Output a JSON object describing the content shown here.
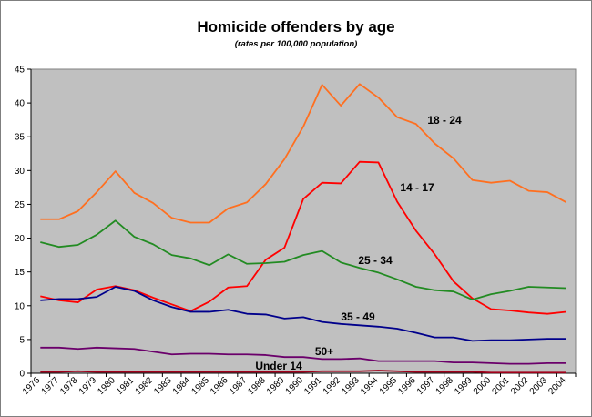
{
  "chart_data": {
    "type": "line",
    "title": "Homicide offenders by age",
    "subtitle": "(rates per 100,000 population)",
    "xlabel": "",
    "ylabel": "",
    "ylim": [
      0,
      45
    ],
    "yticks": [
      0,
      5,
      10,
      15,
      20,
      25,
      30,
      35,
      40,
      45
    ],
    "grid": false,
    "legend": "inline labels",
    "plot_background": "#c0c0c0",
    "categories": [
      "1976",
      "1977",
      "1978",
      "1979",
      "1980",
      "1981",
      "1982",
      "1983",
      "1984",
      "1985",
      "1986",
      "1987",
      "1988",
      "1989",
      "1990",
      "1991",
      "1992",
      "1993",
      "1994",
      "1995",
      "1996",
      "1997",
      "1998",
      "1999",
      "2000",
      "2001",
      "2002",
      "2003",
      "2004"
    ],
    "series": [
      {
        "name": "18 - 24",
        "color": "#ff6f1f",
        "values": [
          22.8,
          22.8,
          24.0,
          26.8,
          29.9,
          26.7,
          25.2,
          23.0,
          22.3,
          22.3,
          24.4,
          25.3,
          28.0,
          31.7,
          36.5,
          42.7,
          39.6,
          42.8,
          40.8,
          37.9,
          36.9,
          34.0,
          31.8,
          28.6,
          28.2,
          28.5,
          27.0,
          26.8,
          25.3
        ]
      },
      {
        "name": "14 - 17",
        "color": "#ff0000",
        "values": [
          11.4,
          10.8,
          10.5,
          12.4,
          12.9,
          12.3,
          11.2,
          10.2,
          9.2,
          10.6,
          12.7,
          12.9,
          16.8,
          18.6,
          25.8,
          28.2,
          28.1,
          31.3,
          31.2,
          25.4,
          21.1,
          17.6,
          13.6,
          11.1,
          9.5,
          9.3,
          9.0,
          8.8,
          9.1
        ]
      },
      {
        "name": "25 - 34",
        "color": "#228b22",
        "values": [
          19.4,
          18.7,
          19.0,
          20.5,
          22.6,
          20.2,
          19.1,
          17.5,
          17.0,
          16.0,
          17.6,
          16.2,
          16.3,
          16.5,
          17.5,
          18.1,
          16.4,
          15.6,
          14.9,
          13.9,
          12.8,
          12.3,
          12.1,
          10.9,
          11.7,
          12.2,
          12.8,
          12.7,
          12.6
        ]
      },
      {
        "name": "35 - 49",
        "color": "#00008b",
        "values": [
          10.8,
          11.0,
          11.0,
          11.3,
          12.8,
          12.2,
          10.8,
          9.8,
          9.1,
          9.1,
          9.4,
          8.8,
          8.7,
          8.1,
          8.3,
          7.6,
          7.3,
          7.1,
          6.9,
          6.6,
          6.0,
          5.3,
          5.3,
          4.8,
          4.9,
          4.9,
          5.0,
          5.1,
          5.1
        ]
      },
      {
        "name": "50+",
        "color": "#6b006b",
        "values": [
          3.8,
          3.8,
          3.6,
          3.8,
          3.7,
          3.6,
          3.2,
          2.8,
          2.9,
          2.9,
          2.8,
          2.8,
          2.7,
          2.4,
          2.4,
          2.1,
          2.1,
          2.2,
          1.8,
          1.8,
          1.8,
          1.8,
          1.6,
          1.6,
          1.5,
          1.4,
          1.4,
          1.5,
          1.5
        ]
      },
      {
        "name": "Under 14",
        "color": "#a0001a",
        "values": [
          0.2,
          0.2,
          0.3,
          0.2,
          0.2,
          0.2,
          0.2,
          0.2,
          0.2,
          0.2,
          0.2,
          0.2,
          0.2,
          0.2,
          0.2,
          0.3,
          0.3,
          0.3,
          0.4,
          0.3,
          0.2,
          0.2,
          0.2,
          0.2,
          0.1,
          0.1,
          0.1,
          0.1,
          0.1
        ]
      }
    ]
  }
}
